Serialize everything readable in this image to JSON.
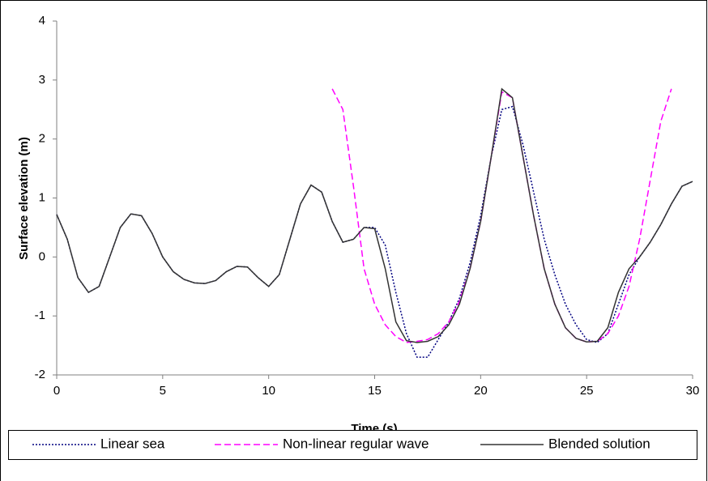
{
  "chart_data": {
    "type": "line",
    "y_label": "Surface elevation (m)",
    "x_label": "Time (s)",
    "x": [
      0,
      0.5,
      1,
      1.5,
      2,
      2.5,
      3,
      3.5,
      4,
      4.5,
      5,
      5.5,
      6,
      6.5,
      7,
      7.5,
      8,
      8.5,
      9,
      9.5,
      10,
      10.5,
      11,
      11.5,
      12,
      12.5,
      13,
      13.5,
      14,
      14.5,
      15,
      15.5,
      16,
      16.5,
      17,
      17.5,
      18,
      18.5,
      19,
      19.5,
      20,
      20.5,
      21,
      21.5,
      22,
      22.5,
      23,
      23.5,
      24,
      24.5,
      25,
      25.5,
      26,
      26.5,
      27,
      27.5,
      28,
      28.5,
      29,
      29.5,
      30
    ],
    "series": [
      {
        "name": "Linear sea",
        "color": "#000080",
        "dash": "dotted",
        "values": [
          0.72,
          0.3,
          -0.35,
          -0.6,
          -0.5,
          0,
          0.5,
          0.73,
          0.7,
          0.4,
          0,
          -0.25,
          -0.38,
          -0.44,
          -0.45,
          -0.4,
          -0.25,
          -0.16,
          -0.17,
          -0.35,
          -0.5,
          -0.3,
          0.3,
          0.9,
          1.22,
          1.1,
          0.6,
          0.25,
          0.3,
          0.5,
          0.5,
          0.2,
          -0.6,
          -1.3,
          -1.7,
          -1.7,
          -1.4,
          -1.1,
          -0.7,
          -0.1,
          0.7,
          1.7,
          2.5,
          2.55,
          1.9,
          1.1,
          0.3,
          -0.3,
          -0.8,
          -1.15,
          -1.4,
          -1.45,
          -1.3,
          -0.8,
          -0.3,
          0,
          0.25,
          0.55,
          0.9,
          1.2,
          1.28
        ]
      },
      {
        "name": "Non-linear regular wave",
        "color": "#ff00ff",
        "dash": "dashed",
        "values": [
          null,
          null,
          null,
          null,
          null,
          null,
          null,
          null,
          null,
          null,
          null,
          null,
          null,
          null,
          null,
          null,
          null,
          null,
          null,
          null,
          null,
          null,
          null,
          null,
          null,
          null,
          2.85,
          2.5,
          1.2,
          -0.2,
          -0.8,
          -1.15,
          -1.35,
          -1.45,
          -1.43,
          -1.4,
          -1.3,
          -1.1,
          -0.75,
          -0.2,
          0.6,
          1.7,
          2.8,
          2.7,
          1.7,
          0.7,
          -0.2,
          -0.8,
          -1.2,
          -1.38,
          -1.44,
          -1.43,
          -1.3,
          -1,
          -0.5,
          0.3,
          1.3,
          2.3,
          2.85,
          null,
          null
        ]
      },
      {
        "name": "Blended solution",
        "color": "#333333",
        "dash": "solid",
        "values": [
          0.72,
          0.3,
          -0.35,
          -0.6,
          -0.5,
          0,
          0.5,
          0.73,
          0.7,
          0.4,
          0,
          -0.25,
          -0.38,
          -0.44,
          -0.45,
          -0.4,
          -0.25,
          -0.16,
          -0.17,
          -0.35,
          -0.5,
          -0.3,
          0.3,
          0.9,
          1.22,
          1.1,
          0.6,
          0.25,
          0.3,
          0.5,
          0.48,
          -0.2,
          -1.1,
          -1.42,
          -1.45,
          -1.43,
          -1.35,
          -1.15,
          -0.8,
          -0.2,
          0.6,
          1.7,
          2.85,
          2.7,
          1.7,
          0.7,
          -0.2,
          -0.8,
          -1.2,
          -1.38,
          -1.44,
          -1.43,
          -1.2,
          -0.6,
          -0.2,
          0,
          0.25,
          0.55,
          0.9,
          1.2,
          1.28
        ]
      }
    ],
    "xlim": [
      0,
      30
    ],
    "xticks": [
      0,
      5,
      10,
      15,
      20,
      25,
      30
    ],
    "ylim": [
      -2,
      4
    ],
    "yticks": [
      -2,
      -1,
      0,
      1,
      2,
      3,
      4
    ],
    "grid": false,
    "legend": "bottom"
  }
}
